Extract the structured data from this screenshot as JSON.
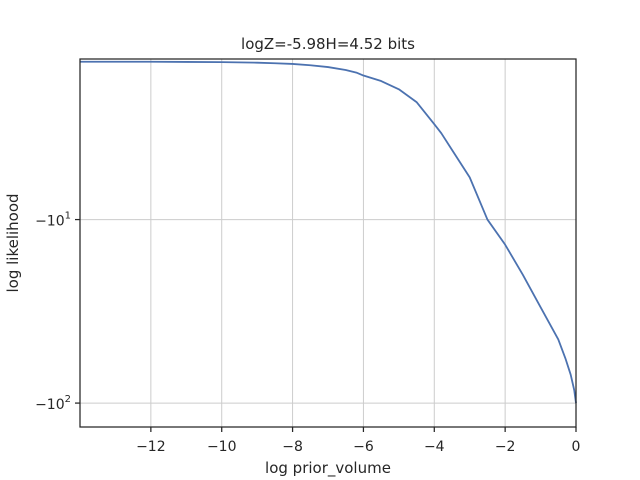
{
  "chart_data": {
    "type": "line",
    "title": "logZ=-5.98H=4.52 bits",
    "xlabel": "log prior_volume",
    "ylabel": "log likelihood",
    "xlim": [
      -14,
      0
    ],
    "ylim": [
      -135,
      -1.25
    ],
    "yscale": "symlog",
    "grid": true,
    "legend": "none",
    "x_ticks": [
      {
        "value": -12,
        "label": "−12"
      },
      {
        "value": -10,
        "label": "−10"
      },
      {
        "value": -8,
        "label": "−8"
      },
      {
        "value": -6,
        "label": "−6"
      },
      {
        "value": -4,
        "label": "−4"
      },
      {
        "value": -2,
        "label": "−2"
      },
      {
        "value": 0,
        "label": "0"
      }
    ],
    "y_ticks": [
      {
        "value": -10,
        "base": "−10",
        "exp": "1"
      },
      {
        "value": -100,
        "base": "−10",
        "exp": "2"
      }
    ],
    "series": [
      {
        "color": "#4c72b0",
        "x": [
          -14.0,
          -13.0,
          -12.0,
          -11.0,
          -10.0,
          -9.0,
          -8.5,
          -8.0,
          -7.5,
          -7.0,
          -6.5,
          -6.2,
          -6.0,
          -5.5,
          -5.0,
          -4.5,
          -4.0,
          -3.8,
          -3.5,
          -3.0,
          -2.5,
          -2.0,
          -1.5,
          -1.0,
          -0.5,
          -0.3,
          -0.15,
          -0.05,
          0.0
        ],
        "y": [
          -1.4,
          -1.4,
          -1.4,
          -1.41,
          -1.42,
          -1.45,
          -1.48,
          -1.52,
          -1.59,
          -1.69,
          -1.85,
          -1.99,
          -2.15,
          -2.45,
          -2.9,
          -3.6,
          -4.8,
          -5.3,
          -6.2,
          -7.7,
          -10.0,
          -13.7,
          -20.0,
          -30.0,
          -45.0,
          -57.0,
          -70.0,
          -85.0,
          -100.0
        ]
      }
    ]
  }
}
